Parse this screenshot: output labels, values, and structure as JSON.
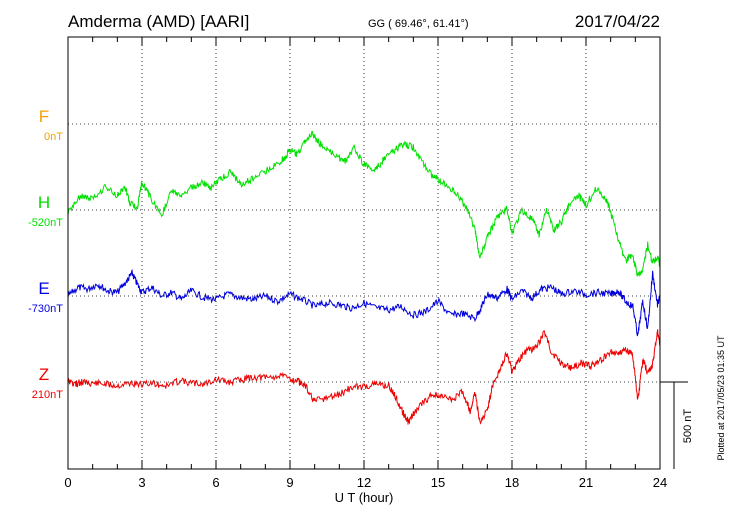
{
  "header": {
    "station": "Amderma (AMD)  [AARI]",
    "coords": "GG ( 69.46°,  61.41°)",
    "date": "2017/04/22"
  },
  "side_note": "Plotted at 2017/05/23 01:35 UT",
  "chart_data": {
    "type": "line",
    "xlabel": "U T (hour)",
    "xlim": [
      0,
      24
    ],
    "xticks": [
      "0",
      "3",
      "6",
      "9",
      "12",
      "15",
      "18",
      "21",
      "24"
    ],
    "scale_bar_label": "500 nT",
    "scale_bar_nT": 500,
    "series": [
      {
        "name": "F",
        "baseline_label": "0nT",
        "color": "#f5a000",
        "x": [],
        "values": []
      },
      {
        "name": "H",
        "baseline_label": "-520nT",
        "color": "#00e000",
        "x": [
          0,
          0.5,
          1,
          1.5,
          2,
          2.3,
          2.5,
          2.8,
          3,
          3.3,
          3.8,
          4.2,
          4.6,
          5,
          5.5,
          5.8,
          6.2,
          6.6,
          7,
          7.5,
          8,
          8.5,
          8.8,
          9,
          9.3,
          9.6,
          9.9,
          10.1,
          10.5,
          11,
          11.3,
          11.6,
          12,
          12.4,
          12.8,
          13.2,
          13.6,
          14,
          14.4,
          14.8,
          15,
          15.4,
          15.8,
          16.2,
          16.5,
          16.7,
          17,
          17.4,
          17.8,
          18,
          18.4,
          18.8,
          19.1,
          19.4,
          19.7,
          20,
          20.3,
          20.7,
          21,
          21.4,
          21.8,
          22,
          22.3,
          22.6,
          22.9,
          23.1,
          23.3,
          23.5,
          23.7,
          23.9,
          24
        ],
        "values": [
          -540,
          -440,
          -460,
          -390,
          -440,
          -380,
          -480,
          -510,
          -360,
          -440,
          -550,
          -410,
          -450,
          -390,
          -360,
          -390,
          -340,
          -300,
          -370,
          -340,
          -300,
          -250,
          -220,
          -170,
          -200,
          -120,
          -80,
          -120,
          -180,
          -220,
          -240,
          -160,
          -260,
          -300,
          -230,
          -180,
          -140,
          -160,
          -250,
          -330,
          -340,
          -390,
          -430,
          -520,
          -640,
          -800,
          -680,
          -560,
          -510,
          -650,
          -520,
          -570,
          -660,
          -510,
          -640,
          -590,
          -490,
          -440,
          -490,
          -400,
          -450,
          -530,
          -690,
          -810,
          -780,
          -900,
          -870,
          -720,
          -820,
          -790,
          -840
        ]
      },
      {
        "name": "E",
        "baseline_label": "-730nT",
        "color": "#0000dd",
        "x": [
          0,
          0.4,
          0.8,
          1.2,
          1.6,
          2,
          2.4,
          2.6,
          2.8,
          3,
          3.4,
          3.8,
          4.2,
          4.6,
          5,
          5.5,
          6,
          6.5,
          7,
          7.5,
          8,
          8.5,
          9,
          9.5,
          10,
          10.5,
          11,
          11.5,
          12,
          12.5,
          13,
          13.5,
          14,
          14.5,
          15,
          15.5,
          16,
          16.5,
          16.8,
          17,
          17.4,
          17.8,
          18,
          18.4,
          18.8,
          19.2,
          19.6,
          20,
          20.5,
          21,
          21.5,
          22,
          22.3,
          22.6,
          22.9,
          23.1,
          23.3,
          23.5,
          23.7,
          23.9,
          24
        ],
        "values": [
          -730,
          -680,
          -690,
          -660,
          -700,
          -710,
          -640,
          -600,
          -660,
          -710,
          -680,
          -730,
          -710,
          -750,
          -700,
          -740,
          -750,
          -720,
          -740,
          -750,
          -730,
          -760,
          -720,
          -750,
          -790,
          -770,
          -780,
          -800,
          -770,
          -800,
          -810,
          -790,
          -840,
          -820,
          -760,
          -840,
          -830,
          -860,
          -780,
          -720,
          -740,
          -690,
          -750,
          -700,
          -740,
          -690,
          -680,
          -720,
          -700,
          -720,
          -710,
          -720,
          -700,
          -760,
          -790,
          -960,
          -760,
          -920,
          -600,
          -780,
          -730
        ]
      },
      {
        "name": "Z",
        "baseline_label": "210nT",
        "color": "#ee0000",
        "x": [
          0,
          0.3,
          0.6,
          1,
          1.5,
          2,
          2.5,
          3,
          3.5,
          4,
          4.5,
          5,
          5.5,
          6,
          6.5,
          7,
          7.5,
          8,
          8.5,
          9,
          9.3,
          9.6,
          10,
          10.5,
          11,
          11.5,
          12,
          12.5,
          13,
          13.3,
          13.6,
          13.8,
          14,
          14.4,
          14.8,
          15.2,
          15.6,
          16,
          16.3,
          16.5,
          16.7,
          17,
          17.2,
          17.5,
          17.8,
          18,
          18.3,
          18.6,
          19,
          19.3,
          19.6,
          20,
          20.4,
          20.8,
          21.2,
          21.6,
          22,
          22.3,
          22.6,
          22.9,
          23.1,
          23.3,
          23.5,
          23.7,
          23.9,
          24
        ],
        "values": [
          220,
          200,
          210,
          205,
          200,
          190,
          205,
          195,
          200,
          190,
          215,
          205,
          200,
          225,
          210,
          220,
          240,
          235,
          245,
          230,
          215,
          190,
          100,
          120,
          140,
          180,
          185,
          200,
          190,
          120,
          30,
          -20,
          30,
          90,
          140,
          120,
          110,
          160,
          40,
          150,
          -20,
          50,
          180,
          280,
          380,
          270,
          340,
          390,
          410,
          500,
          380,
          320,
          290,
          320,
          300,
          340,
          380,
          380,
          400,
          360,
          100,
          340,
          260,
          310,
          500,
          420
        ]
      }
    ]
  }
}
